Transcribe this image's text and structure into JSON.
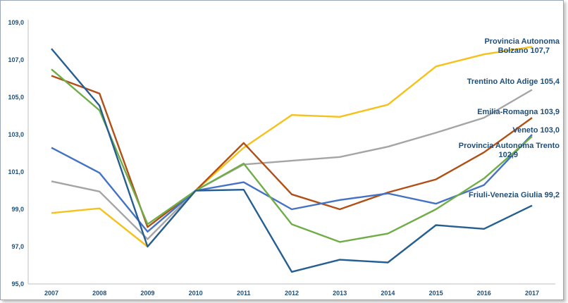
{
  "chart_data": {
    "type": "line",
    "x": [
      "2007",
      "2008",
      "2009",
      "2010",
      "2011",
      "2012",
      "2013",
      "2014",
      "2015",
      "2016",
      "2017"
    ],
    "yticks": [
      "95,0",
      "97,0",
      "99,0",
      "101,0",
      "103,0",
      "105,0",
      "107,0",
      "109,0"
    ],
    "ylim": [
      95,
      109
    ],
    "grid": false,
    "series": [
      {
        "name": "Provincia Autonoma Bolzano",
        "color": "#f5c11b",
        "values": [
          98.8,
          99.05,
          97.0,
          100.0,
          102.3,
          104.05,
          103.95,
          104.6,
          106.65,
          107.3,
          107.7
        ]
      },
      {
        "name": "Trentino Alto Adige",
        "color": "#a5a5a5",
        "values": [
          100.5,
          99.95,
          97.4,
          100.0,
          101.4,
          101.6,
          101.8,
          102.35,
          103.1,
          103.9,
          105.4
        ]
      },
      {
        "name": "Emilia-Romagna",
        "color": "#b04f16",
        "values": [
          106.15,
          105.2,
          98.05,
          100.0,
          102.55,
          99.8,
          99.0,
          99.9,
          100.6,
          102.05,
          103.9
        ]
      },
      {
        "name": "Veneto",
        "color": "#4472c4",
        "values": [
          102.3,
          100.95,
          97.8,
          100.0,
          100.45,
          99.0,
          99.5,
          99.85,
          99.3,
          100.3,
          103.0
        ]
      },
      {
        "name": "Provincia Autonoma Trento",
        "color": "#70ad47",
        "values": [
          106.5,
          104.3,
          98.2,
          100.0,
          101.45,
          98.2,
          97.25,
          97.7,
          99.0,
          100.65,
          102.9
        ]
      },
      {
        "name": "Friuli-Venezia Giulia",
        "color": "#255e91",
        "values": [
          107.6,
          104.55,
          97.0,
          100.0,
          100.05,
          95.65,
          96.3,
          96.15,
          98.15,
          97.95,
          99.2
        ]
      }
    ],
    "annotations": [
      {
        "lines": [
          "Provincia Autonoma",
          "Bolzano 107,7"
        ]
      },
      {
        "lines": [
          "Trentino Alto Adige 105,4"
        ]
      },
      {
        "lines": [
          "Emilia-Romagna 103,9"
        ]
      },
      {
        "lines": [
          "Veneto 103,0"
        ]
      },
      {
        "lines": [
          "Provincia Autonoma Trento",
          "102,9"
        ]
      },
      {
        "lines": [
          "Friuli-Venezia Giulia 99,2"
        ]
      }
    ]
  }
}
